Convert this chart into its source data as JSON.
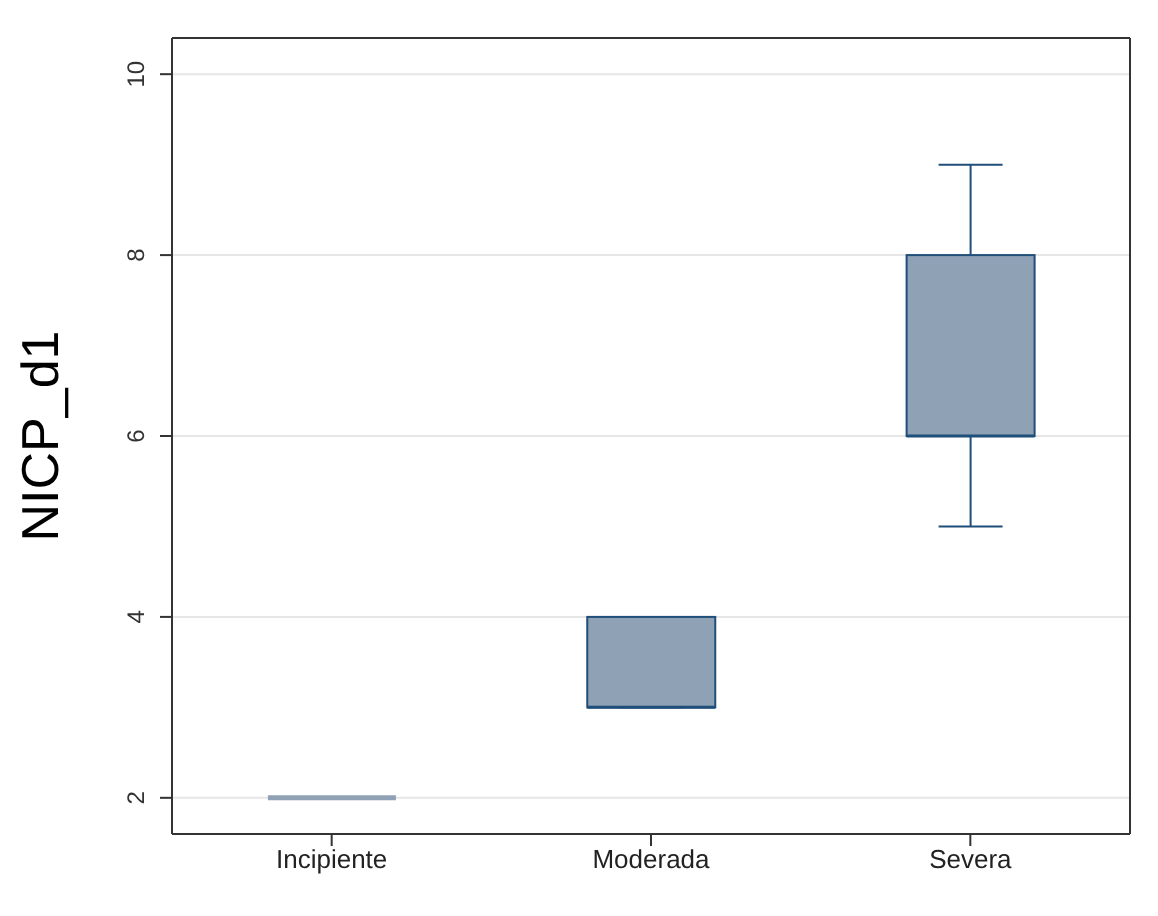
{
  "chart_data": {
    "type": "box",
    "ylabel": "NICP_d1",
    "categories": [
      "Incipiente",
      "Moderada",
      "Severa"
    ],
    "boxes": [
      {
        "low": 2,
        "q1": 2,
        "median": 2,
        "q3": 2,
        "high": 2
      },
      {
        "low": 3,
        "q1": 3,
        "median": 3,
        "q3": 4,
        "high": 4
      },
      {
        "low": 5,
        "q1": 6,
        "median": 6,
        "q3": 8,
        "high": 9
      }
    ],
    "color": "#8fa1b5",
    "ylim": [
      1.6,
      10.4
    ],
    "yticks": [
      2,
      4,
      6,
      8,
      10
    ],
    "grid": "y"
  }
}
